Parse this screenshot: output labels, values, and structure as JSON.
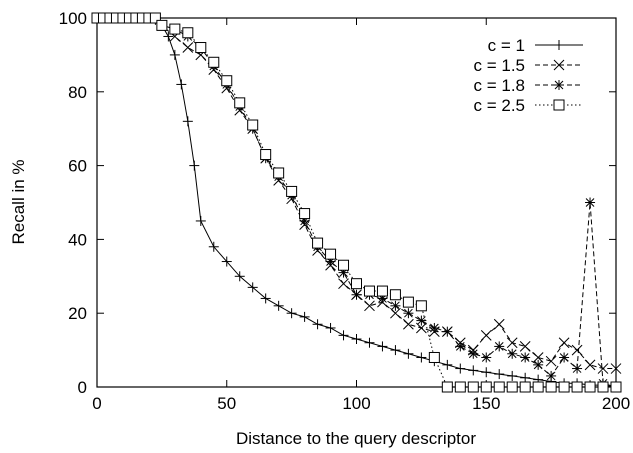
{
  "chart_data": {
    "type": "line",
    "xlabel": "Distance to the query descriptor",
    "ylabel": "Recall in %",
    "xlim": [
      0,
      200
    ],
    "ylim": [
      0,
      100
    ],
    "x_ticks": [
      "0",
      "50",
      "100",
      "150",
      "200"
    ],
    "y_ticks": [
      "0",
      "20",
      "40",
      "60",
      "80",
      "100"
    ],
    "grid": false,
    "legend_position": "top-right",
    "series": [
      {
        "name": "c = 1",
        "marker": "plus",
        "dash": "solid",
        "x": [
          0,
          2.5,
          5,
          7.5,
          10,
          12.5,
          15,
          17.5,
          20,
          22.5,
          25,
          27.5,
          30,
          32.5,
          35,
          37.5,
          40,
          45,
          50,
          55,
          60,
          65,
          70,
          75,
          80,
          85,
          90,
          95,
          100,
          105,
          110,
          115,
          120,
          125,
          130,
          135,
          140,
          145,
          150,
          155,
          160,
          165,
          170,
          175,
          180,
          185,
          190,
          195,
          200
        ],
        "y": [
          100,
          100,
          100,
          100,
          100,
          100,
          100,
          100,
          100,
          99.5,
          98,
          95,
          90,
          82,
          72,
          60,
          45,
          38,
          34,
          30,
          27,
          24,
          22,
          20,
          19,
          17,
          16,
          14,
          13,
          12,
          11,
          10,
          9,
          8,
          7,
          6,
          5,
          4.5,
          4,
          3.5,
          3,
          2.5,
          2,
          1.5,
          1,
          1,
          0.5,
          0.5,
          0
        ]
      },
      {
        "name": "c = 1.5",
        "marker": "x",
        "dash": "dashed",
        "x": [
          0,
          2.5,
          5,
          7.5,
          10,
          12.5,
          15,
          17.5,
          20,
          22.5,
          25,
          30,
          35,
          40,
          45,
          50,
          55,
          60,
          65,
          70,
          75,
          80,
          85,
          90,
          95,
          100,
          105,
          110,
          115,
          120,
          125,
          130,
          135,
          140,
          145,
          150,
          155,
          160,
          165,
          170,
          175,
          180,
          185,
          190,
          195,
          200
        ],
        "y": [
          100,
          100,
          100,
          100,
          100,
          100,
          100,
          100,
          100,
          100,
          98,
          95,
          92,
          90,
          86,
          81,
          75,
          70,
          62,
          56,
          51,
          44,
          37,
          33,
          28,
          25,
          22,
          23,
          20,
          17,
          16,
          15,
          15,
          12,
          10,
          14,
          17,
          12,
          11,
          8,
          7,
          12,
          10,
          6,
          5,
          5
        ]
      },
      {
        "name": "c = 1.8",
        "marker": "star",
        "dash": "dashed",
        "x": [
          0,
          2.5,
          5,
          7.5,
          10,
          12.5,
          15,
          17.5,
          20,
          22.5,
          25,
          30,
          35,
          40,
          45,
          50,
          55,
          60,
          65,
          70,
          75,
          80,
          85,
          90,
          95,
          100,
          105,
          110,
          115,
          120,
          125,
          130,
          135,
          140,
          145,
          150,
          155,
          160,
          165,
          170,
          175,
          180,
          185,
          190,
          195,
          200
        ],
        "y": [
          100,
          100,
          100,
          100,
          100,
          100,
          100,
          100,
          100,
          100,
          98,
          97,
          95,
          92,
          87,
          82,
          76,
          70,
          62,
          57,
          52,
          45,
          38,
          34,
          31,
          25,
          25,
          24,
          22,
          20,
          18,
          16,
          15,
          11,
          9,
          8,
          11,
          9,
          8,
          6,
          3,
          8,
          5,
          50,
          1,
          0
        ]
      },
      {
        "name": "c = 2.5",
        "marker": "square",
        "dash": "dotted",
        "x": [
          0,
          2.5,
          5,
          7.5,
          10,
          12.5,
          15,
          17.5,
          20,
          22.5,
          25,
          30,
          35,
          40,
          45,
          50,
          55,
          60,
          65,
          70,
          75,
          80,
          85,
          90,
          95,
          100,
          105,
          110,
          115,
          120,
          125,
          130,
          135,
          140,
          145,
          150,
          155,
          160,
          165,
          170,
          175,
          180,
          185,
          190,
          195,
          200
        ],
        "y": [
          100,
          100,
          100,
          100,
          100,
          100,
          100,
          100,
          100,
          100,
          98,
          97,
          96,
          92,
          88,
          83,
          77,
          71,
          63,
          58,
          53,
          47,
          39,
          36,
          33,
          28,
          26,
          26,
          25,
          23,
          22,
          8,
          0,
          0,
          0,
          0,
          0,
          0,
          0,
          0,
          0,
          0,
          0,
          0,
          0,
          0
        ]
      }
    ]
  }
}
